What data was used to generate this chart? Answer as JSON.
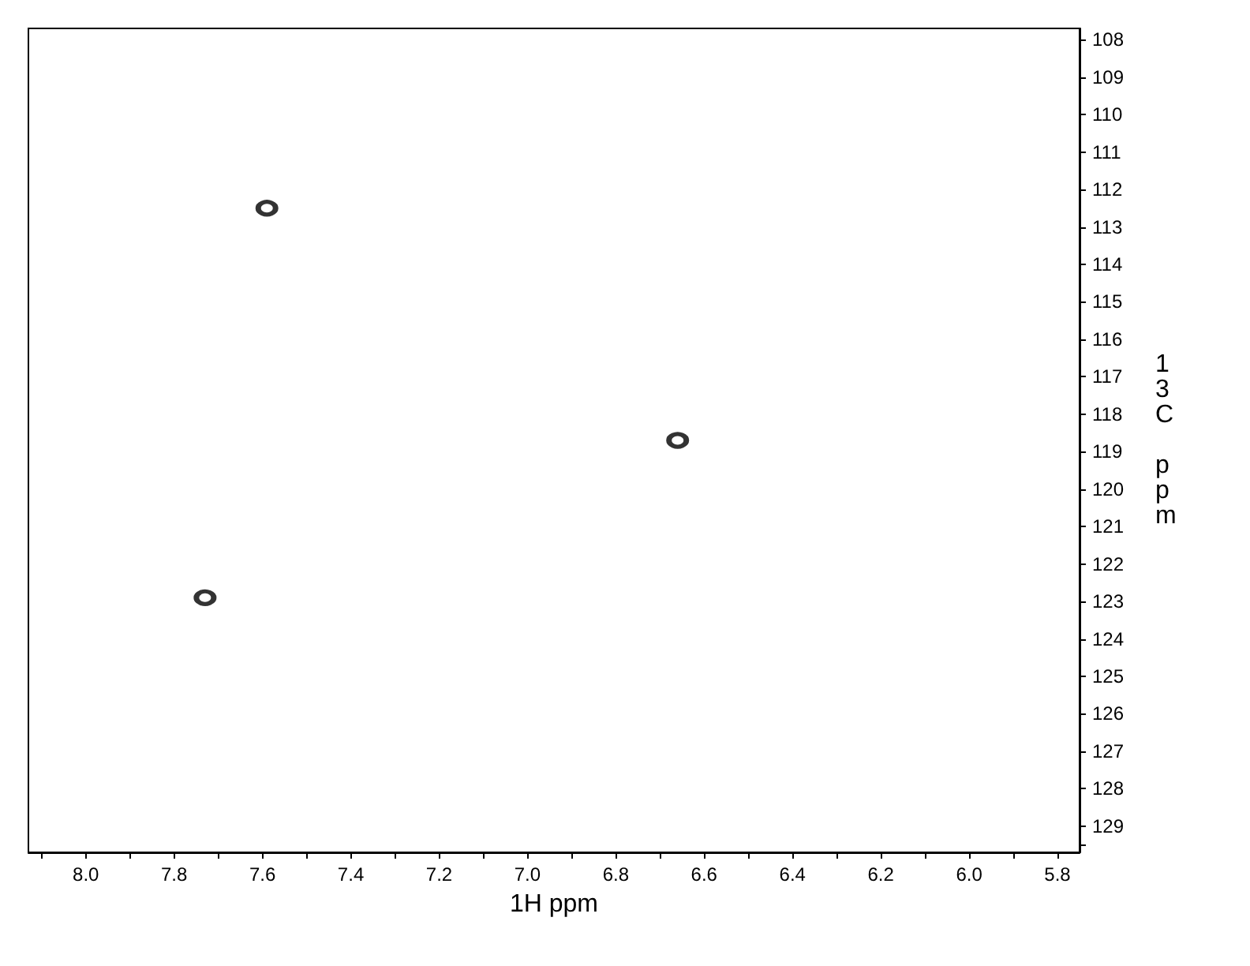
{
  "chart_data": {
    "type": "scatter",
    "xlabel": "1H ppm",
    "ylabel": "13C ppm",
    "marker": "circle",
    "series": [
      {
        "color": "#000000",
        "x": [
          7.59,
          6.66,
          7.73
        ],
        "values": [
          112.5,
          118.7,
          122.9
        ]
      }
    ],
    "xlim": [
      8.13,
      5.75
    ],
    "ylim": [
      129.7,
      107.7
    ],
    "xticks": [
      {
        "value": 8.1,
        "label": null
      },
      {
        "value": 8.0,
        "label": "8.0"
      },
      {
        "value": 7.9,
        "label": null
      },
      {
        "value": 7.8,
        "label": "7.8"
      },
      {
        "value": 7.7,
        "label": null
      },
      {
        "value": 7.6,
        "label": "7.6"
      },
      {
        "value": 7.5,
        "label": null
      },
      {
        "value": 7.4,
        "label": "7.4"
      },
      {
        "value": 7.3,
        "label": null
      },
      {
        "value": 7.2,
        "label": "7.2"
      },
      {
        "value": 7.1,
        "label": null
      },
      {
        "value": 7.0,
        "label": "7.0"
      },
      {
        "value": 6.9,
        "label": null
      },
      {
        "value": 6.8,
        "label": "6.8"
      },
      {
        "value": 6.7,
        "label": null
      },
      {
        "value": 6.6,
        "label": "6.6"
      },
      {
        "value": 6.5,
        "label": null
      },
      {
        "value": 6.4,
        "label": "6.4"
      },
      {
        "value": 6.3,
        "label": null
      },
      {
        "value": 6.2,
        "label": "6.2"
      },
      {
        "value": 6.1,
        "label": null
      },
      {
        "value": 6.0,
        "label": "6.0"
      },
      {
        "value": 5.9,
        "label": null
      },
      {
        "value": 5.8,
        "label": "5.8"
      }
    ],
    "yticks": [
      108,
      109,
      110,
      111,
      112,
      113,
      114,
      115,
      116,
      117,
      118,
      119,
      120,
      121,
      122,
      123,
      124,
      125,
      126,
      127,
      128,
      129,
      {
        "value": 129.5,
        "label": null
      }
    ]
  }
}
